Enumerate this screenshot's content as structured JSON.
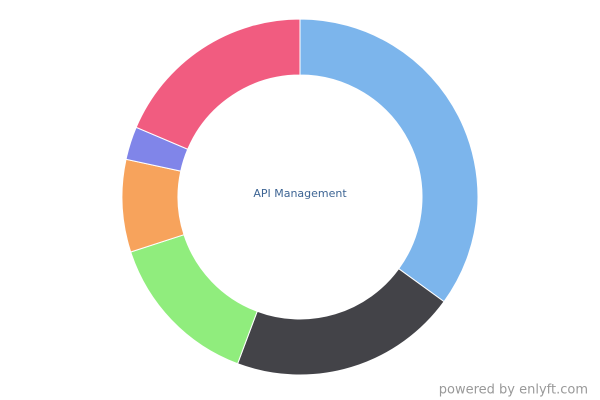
{
  "chart_data": {
    "type": "pie",
    "center_label": "API Management",
    "credits": "powered by enlyft.com",
    "values": [
      35,
      20.7,
      14.3,
      8.4,
      3,
      18.6
    ],
    "colors": [
      "#7cb5ec",
      "#434348",
      "#90ed7d",
      "#f7a35c",
      "#8085e9",
      "#f15c80"
    ]
  }
}
